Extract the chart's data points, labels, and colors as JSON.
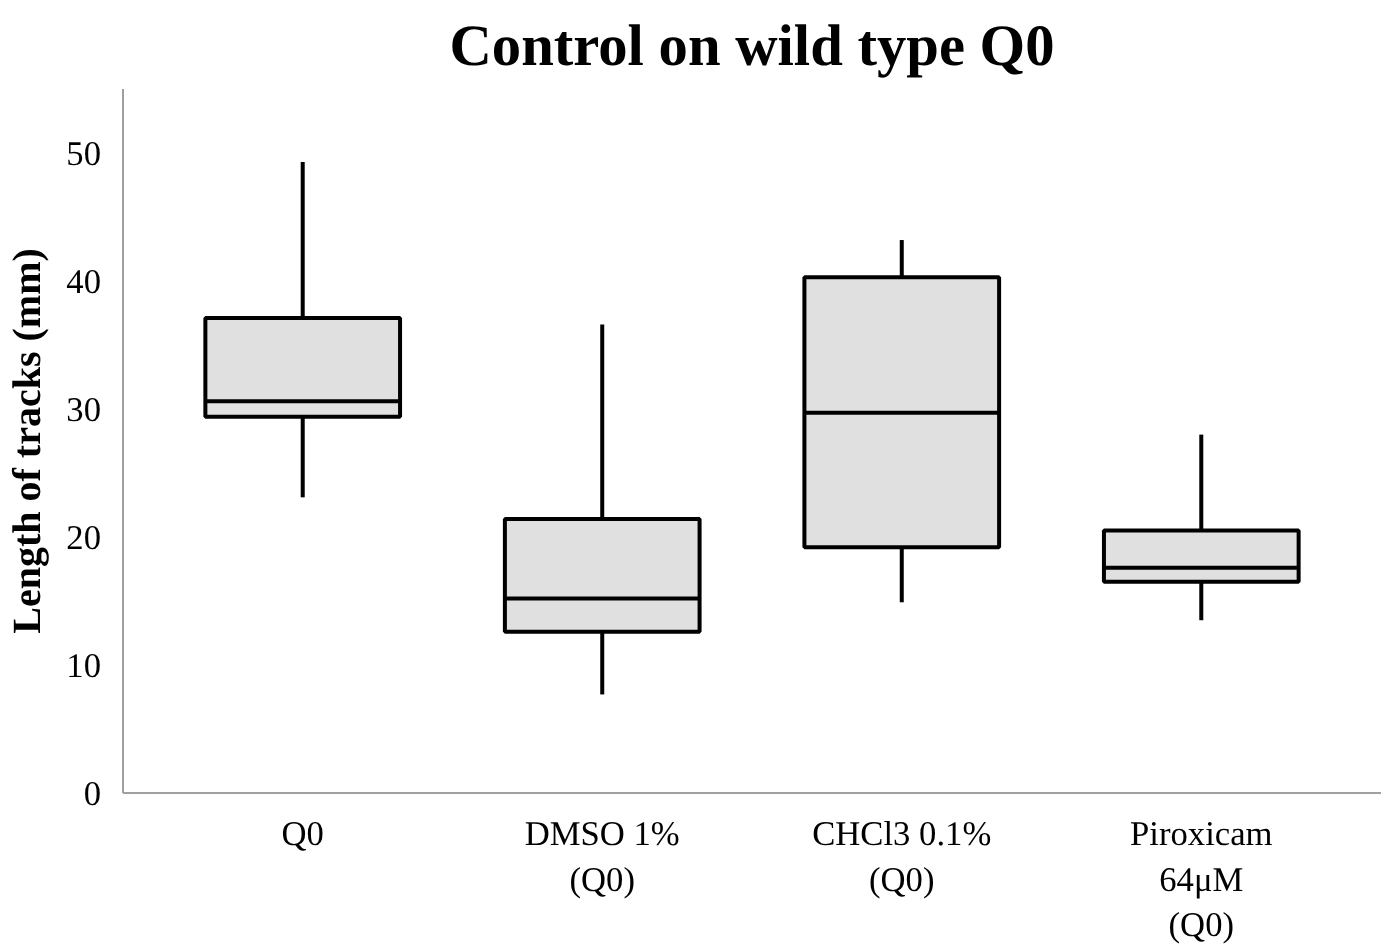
{
  "chart_data": {
    "type": "box",
    "title": "Control on wild type Q0",
    "ylabel": "Length of tracks (mm)",
    "categories": [
      "Q0",
      "DMSO 1%\n(Q0)",
      "CHCl3 0.1%\n(Q0)",
      "Piroxicam\n64μM\n(Q0)"
    ],
    "color": "#e0e0e0",
    "boxes": [
      {
        "low": 23.1,
        "q1": 29.4,
        "median": 30.6,
        "q3": 37.1,
        "high": 49.3
      },
      {
        "low": 7.7,
        "q1": 12.6,
        "median": 15.2,
        "q3": 21.4,
        "high": 36.6
      },
      {
        "low": 14.9,
        "q1": 19.2,
        "median": 29.7,
        "q3": 40.3,
        "high": 43.2
      },
      {
        "low": 13.5,
        "q1": 16.5,
        "median": 17.6,
        "q3": 20.5,
        "high": 28.0
      }
    ],
    "ylim": [
      0,
      55
    ],
    "yticks": [
      0,
      10,
      20,
      30,
      40,
      50
    ],
    "grid": false
  }
}
